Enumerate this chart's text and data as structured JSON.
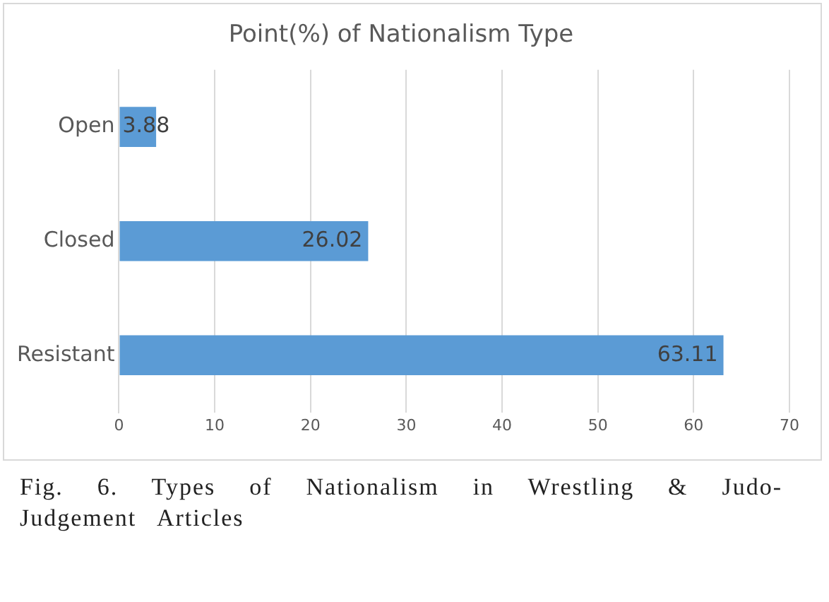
{
  "chart_data": {
    "type": "bar",
    "orientation": "horizontal",
    "title": "Point(%) of Nationalism Type",
    "categories": [
      "Open",
      "Closed",
      "Resistant"
    ],
    "values": [
      3.88,
      26.02,
      63.11
    ],
    "color": "#5b9bd5",
    "xlim": [
      0,
      70
    ],
    "xticks": [
      0,
      10,
      20,
      30,
      40,
      50,
      60,
      70
    ],
    "grid": "x",
    "data_labels": true,
    "annotations": [
      "Fig. 6. Types of Nationalism in Wrestling & Judo-Judgement Articles"
    ]
  }
}
